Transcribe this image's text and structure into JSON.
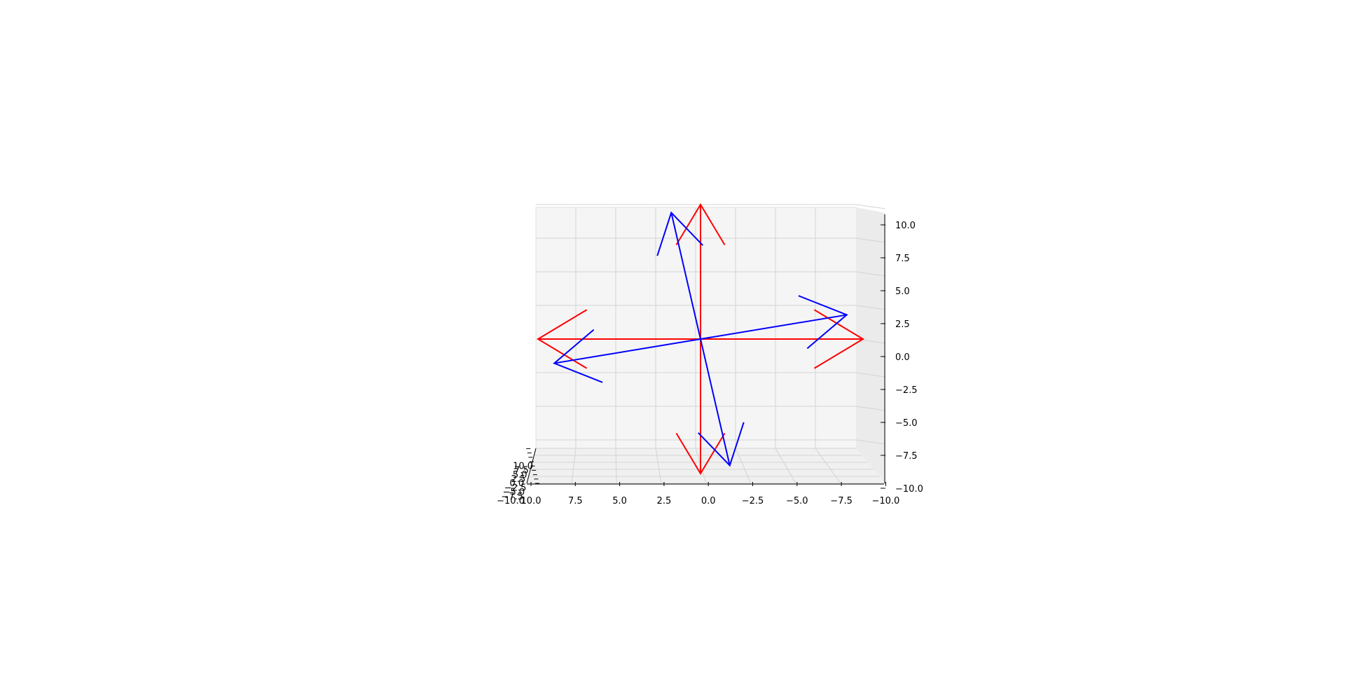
{
  "chart_data": {
    "type": "3d-quiver",
    "title": "",
    "xlabel": "",
    "ylabel": "",
    "zlabel": "",
    "xlim": [
      10.0,
      -10.0
    ],
    "ylim": [
      -10.0,
      10.0
    ],
    "zlim": [
      -10.0,
      10.0
    ],
    "grid": true,
    "x_ticks": [
      "10.0",
      "7.5",
      "5.0",
      "2.5",
      "0.0",
      "−2.5",
      "−5.0",
      "−7.5",
      "−10.0"
    ],
    "y_ticks": [
      "−10.0",
      "−7.5",
      "−5.0",
      "−2.5",
      "0.0",
      "2.5",
      "5.0",
      "7.5",
      "10.0"
    ],
    "z_ticks": [
      "10.0",
      "7.5",
      "5.0",
      "2.5",
      "0.0",
      "−2.5",
      "−5.0",
      "−7.5",
      "−10.0"
    ],
    "series": [
      {
        "color": "#ff0000",
        "vectors": [
          {
            "x": 0,
            "y": 0,
            "z": 0,
            "u": 10,
            "v": 0,
            "w": 0
          },
          {
            "x": 0,
            "y": 0,
            "z": 0,
            "u": -10,
            "v": 0,
            "w": 0
          },
          {
            "x": 0,
            "y": 0,
            "z": 0,
            "u": 0,
            "v": 0,
            "w": 10
          },
          {
            "x": 0,
            "y": 0,
            "z": 0,
            "u": 0,
            "v": 0,
            "w": -10
          }
        ]
      },
      {
        "color": "#0000ff",
        "vectors": [
          {
            "x": 0,
            "y": 0,
            "z": 0,
            "u": 1.8,
            "v": 0,
            "w": 9.4
          },
          {
            "x": 0,
            "y": 0,
            "z": 0,
            "u": -9.0,
            "v": 0,
            "w": 1.8
          },
          {
            "x": 0,
            "y": 0,
            "z": 0,
            "u": 9.0,
            "v": 0,
            "w": -1.8
          },
          {
            "x": 0,
            "y": 0,
            "z": 0,
            "u": -1.8,
            "v": 0,
            "w": -9.4
          }
        ]
      }
    ]
  }
}
